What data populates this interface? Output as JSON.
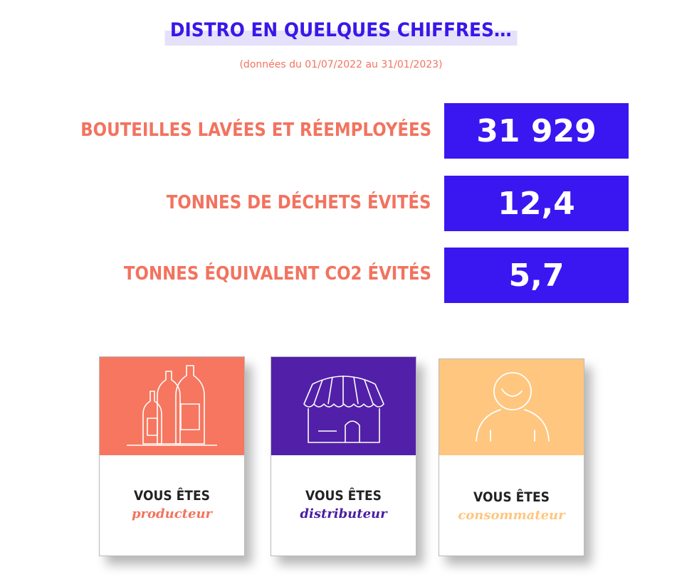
{
  "title": "DISTRO EN QUELQUES CHIFFRES…",
  "subtitle": "(données du 01/07/2022 au 31/01/2023)",
  "colors": {
    "accent_blue": "#3a17f0",
    "coral": "#f2735f",
    "purple": "#5020a8",
    "peach": "#ffc67f"
  },
  "stats": [
    {
      "label": "BOUTEILLES LAVÉES ET RÉEMPLOYÉES",
      "value": "31 929"
    },
    {
      "label": "TONNES DE DÉCHETS ÉVITÉS",
      "value": "12,4"
    },
    {
      "label": "TONNES ÉQUIVALENT CO2 ÉVITÉS",
      "value": "5,7"
    }
  ],
  "cards": [
    {
      "line1": "VOUS ÊTES",
      "line2": "producteur",
      "icon": "bottles-icon"
    },
    {
      "line1": "VOUS ÊTES",
      "line2": "distributeur",
      "icon": "shop-icon"
    },
    {
      "line1": "VOUS ÊTES",
      "line2": "consommateur",
      "icon": "person-icon"
    }
  ]
}
